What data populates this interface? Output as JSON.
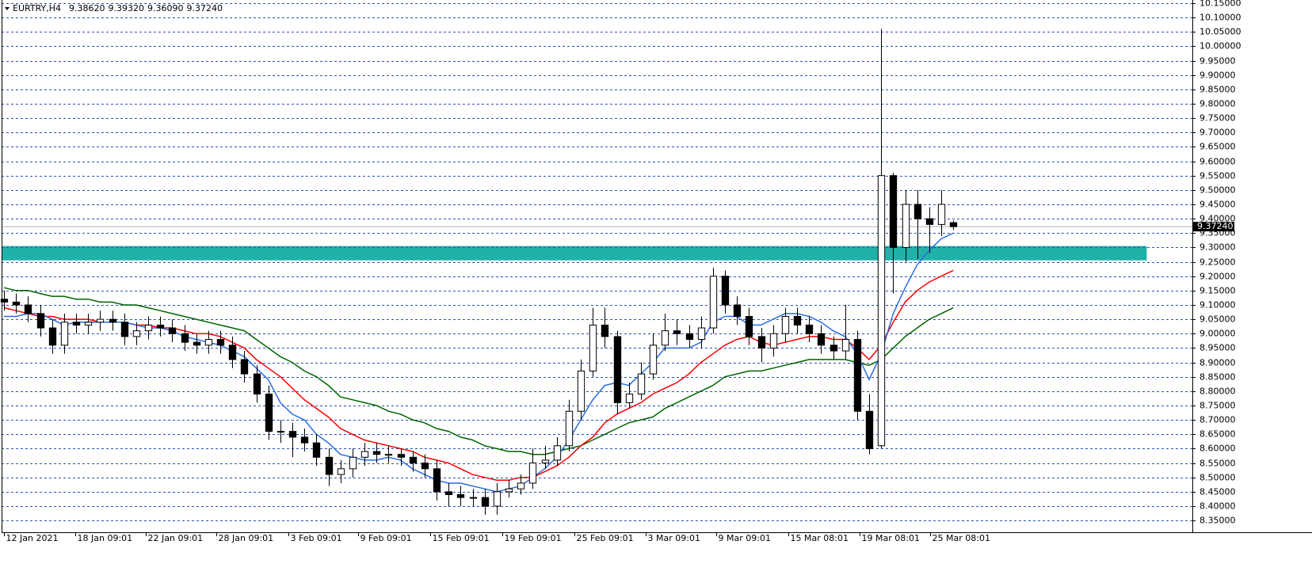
{
  "chart_data": {
    "type": "candlestick",
    "title": "EURTRY,H4",
    "last_bar_labels": [
      "9.38620",
      "9.39320",
      "9.36090",
      "9.37240"
    ],
    "xlim": [
      -0.2,
      98.9
    ],
    "ylim": [
      8.309,
      10.161
    ],
    "grid": true,
    "up_color": "#ffffff",
    "down_color": "#000000",
    "grid_color": "#2e4fb8",
    "xticks": [
      {
        "value": 0,
        "label": "12 Jan 2021"
      },
      {
        "value": 5.9,
        "label": "18 Jan 09:01"
      },
      {
        "value": 11.8,
        "label": "22 Jan 09:01"
      },
      {
        "value": 17.7,
        "label": "28 Jan 09:01"
      },
      {
        "value": 23.7,
        "label": "3 Feb 09:01"
      },
      {
        "value": 29.5,
        "label": "9 Feb 09:01"
      },
      {
        "value": 35.5,
        "label": "15 Feb 09:01"
      },
      {
        "value": 41.5,
        "label": "19 Feb 09:01"
      },
      {
        "value": 47.5,
        "label": "25 Feb 09:01"
      },
      {
        "value": 53.4,
        "label": "3 Mar 09:01"
      },
      {
        "value": 59.3,
        "label": "9 Mar 09:01"
      },
      {
        "value": 65.3,
        "label": "15 Mar 08:01"
      },
      {
        "value": 71.2,
        "label": "19 Mar 08:01"
      },
      {
        "value": 77.1,
        "label": "25 Mar 08:01"
      }
    ],
    "yticks": [
      {
        "value": 8.35,
        "label": "8.35000"
      },
      {
        "value": 8.4,
        "label": "8.40000"
      },
      {
        "value": 8.45,
        "label": "8.45000"
      },
      {
        "value": 8.5,
        "label": "8.50000"
      },
      {
        "value": 8.55,
        "label": "8.55000"
      },
      {
        "value": 8.6,
        "label": "8.60000"
      },
      {
        "value": 8.65,
        "label": "8.65000"
      },
      {
        "value": 8.7,
        "label": "8.70000"
      },
      {
        "value": 8.75,
        "label": "8.75000"
      },
      {
        "value": 8.8,
        "label": "8.80000"
      },
      {
        "value": 8.85,
        "label": "8.85000"
      },
      {
        "value": 8.9,
        "label": "8.90000"
      },
      {
        "value": 8.95,
        "label": "8.95000"
      },
      {
        "value": 9.0,
        "label": "9.00000"
      },
      {
        "value": 9.05,
        "label": "9.05000"
      },
      {
        "value": 9.1,
        "label": "9.10000"
      },
      {
        "value": 9.15,
        "label": "9.15000"
      },
      {
        "value": 9.2,
        "label": "9.20000"
      },
      {
        "value": 9.25,
        "label": "9.25000"
      },
      {
        "value": 9.3,
        "label": "9.30000"
      },
      {
        "value": 9.35,
        "label": "9.35000"
      },
      {
        "value": 9.4,
        "label": "9.40000"
      },
      {
        "value": 9.45,
        "label": "9.45000"
      },
      {
        "value": 9.5,
        "label": "9.50000"
      },
      {
        "value": 9.55,
        "label": "9.55000"
      },
      {
        "value": 9.6,
        "label": "9.60000"
      },
      {
        "value": 9.65,
        "label": "9.65000"
      },
      {
        "value": 9.7,
        "label": "9.70000"
      },
      {
        "value": 9.75,
        "label": "9.75000"
      },
      {
        "value": 9.8,
        "label": "9.80000"
      },
      {
        "value": 9.85,
        "label": "9.85000"
      },
      {
        "value": 9.9,
        "label": "9.90000"
      },
      {
        "value": 9.95,
        "label": "9.95000"
      },
      {
        "value": 10.0,
        "label": "10.00000"
      },
      {
        "value": 10.05,
        "label": "10.05000"
      },
      {
        "value": 10.1,
        "label": "10.10000"
      },
      {
        "value": 10.15,
        "label": "10.15000"
      }
    ],
    "zone": {
      "low": 9.255,
      "high": 9.305,
      "x_end": 95.1,
      "color": "#20b2aa"
    },
    "last_price": 9.3724,
    "x": [
      0,
      1,
      2,
      3,
      4,
      5,
      6,
      7,
      8,
      9,
      10,
      11,
      12,
      13,
      14,
      15,
      16,
      17,
      18,
      19,
      20,
      21,
      22,
      23,
      24,
      25,
      26,
      27,
      28,
      29,
      30,
      31,
      32,
      33,
      34,
      35,
      36,
      37,
      38,
      39,
      40,
      41,
      42,
      43,
      44,
      45,
      46,
      47,
      48,
      49,
      50,
      51,
      52,
      53,
      54,
      55,
      56,
      57,
      58,
      59,
      60,
      61,
      62,
      63,
      64,
      65,
      66,
      67,
      68,
      69,
      70,
      71,
      72,
      73,
      74,
      75,
      76,
      77,
      78,
      79
    ],
    "open": [
      9.12,
      9.11,
      9.1,
      9.07,
      9.02,
      8.96,
      9.04,
      9.03,
      9.04,
      9.05,
      9.04,
      8.99,
      9.01,
      9.03,
      9.02,
      9.0,
      8.97,
      8.96,
      8.98,
      8.96,
      8.91,
      8.86,
      8.79,
      8.66,
      8.66,
      8.64,
      8.62,
      8.57,
      8.51,
      8.53,
      8.57,
      8.59,
      8.58,
      8.58,
      8.57,
      8.55,
      8.53,
      8.45,
      8.44,
      8.43,
      8.43,
      8.4,
      8.45,
      8.46,
      8.48,
      8.55,
      8.56,
      8.61,
      8.73,
      8.87,
      9.03,
      8.99,
      8.76,
      8.79,
      8.86,
      8.96,
      9.01,
      9.0,
      8.98,
      9.02,
      9.2,
      9.1,
      9.06,
      8.99,
      8.95,
      9.0,
      9.06,
      9.03,
      9.0,
      8.96,
      8.94,
      8.98,
      8.73,
      8.61,
      9.55,
      9.3,
      9.45,
      9.4,
      9.38,
      9.3862
    ],
    "high": [
      9.15,
      9.14,
      9.13,
      9.1,
      9.05,
      9.07,
      9.07,
      9.07,
      9.08,
      9.08,
      9.07,
      9.04,
      9.06,
      9.06,
      9.05,
      9.03,
      9.0,
      9.01,
      9.01,
      8.99,
      8.94,
      8.89,
      8.82,
      8.7,
      8.69,
      8.67,
      8.65,
      8.6,
      8.56,
      8.6,
      8.62,
      8.62,
      8.61,
      8.6,
      8.59,
      8.58,
      8.56,
      8.48,
      8.47,
      8.46,
      8.46,
      8.48,
      8.49,
      8.51,
      8.6,
      8.61,
      8.64,
      8.77,
      8.91,
      9.09,
      9.09,
      9.01,
      8.83,
      8.9,
      9.0,
      9.07,
      9.05,
      9.03,
      9.06,
      9.23,
      9.22,
      9.13,
      9.09,
      9.02,
      9.03,
      9.09,
      9.09,
      9.06,
      9.03,
      8.99,
      9.1,
      9.01,
      8.79,
      10.06,
      9.56,
      9.5,
      9.5,
      9.44,
      9.5,
      9.3932
    ],
    "low": [
      9.08,
      9.07,
      9.04,
      8.99,
      8.93,
      8.93,
      9.0,
      9.0,
      9.01,
      9.01,
      8.96,
      8.96,
      8.98,
      8.99,
      8.97,
      8.94,
      8.93,
      8.93,
      8.93,
      8.88,
      8.83,
      8.76,
      8.63,
      8.62,
      8.57,
      8.59,
      8.54,
      8.47,
      8.48,
      8.5,
      8.54,
      8.55,
      8.55,
      8.54,
      8.52,
      8.5,
      8.42,
      8.4,
      8.4,
      8.4,
      8.37,
      8.37,
      8.43,
      8.44,
      8.46,
      8.53,
      8.54,
      8.59,
      8.7,
      8.85,
      8.95,
      8.72,
      8.74,
      8.77,
      8.84,
      8.94,
      8.96,
      8.95,
      8.95,
      9.0,
      9.07,
      9.03,
      8.96,
      8.9,
      8.92,
      8.97,
      9.0,
      8.97,
      8.93,
      8.91,
      8.91,
      8.7,
      8.58,
      8.6,
      9.14,
      9.25,
      9.26,
      9.28,
      9.34,
      9.3609
    ],
    "close": [
      9.11,
      9.1,
      9.07,
      9.02,
      8.96,
      9.04,
      9.03,
      9.04,
      9.05,
      9.04,
      8.99,
      9.01,
      9.03,
      9.02,
      9.0,
      8.97,
      8.96,
      8.98,
      8.96,
      8.91,
      8.86,
      8.79,
      8.66,
      8.66,
      8.64,
      8.62,
      8.57,
      8.51,
      8.53,
      8.57,
      8.59,
      8.58,
      8.58,
      8.57,
      8.55,
      8.53,
      8.45,
      8.44,
      8.43,
      8.43,
      8.4,
      8.45,
      8.46,
      8.48,
      8.55,
      8.56,
      8.61,
      8.73,
      8.87,
      9.03,
      8.99,
      8.76,
      8.79,
      8.86,
      8.96,
      9.01,
      9.0,
      8.98,
      9.02,
      9.2,
      9.1,
      9.06,
      8.99,
      8.95,
      9.0,
      9.06,
      9.03,
      9.0,
      8.96,
      8.94,
      8.98,
      8.73,
      8.6,
      9.55,
      9.3,
      9.45,
      9.4,
      9.38,
      9.45,
      9.3724
    ],
    "overlays": [
      {
        "color": "#006400",
        "values": [
          9.16,
          9.15,
          9.15,
          9.14,
          9.13,
          9.13,
          9.12,
          9.12,
          9.11,
          9.11,
          9.1,
          9.1,
          9.09,
          9.08,
          9.07,
          9.06,
          9.05,
          9.04,
          9.03,
          9.02,
          9.01,
          8.98,
          8.95,
          8.92,
          8.9,
          8.87,
          8.85,
          8.82,
          8.78,
          8.77,
          8.76,
          8.75,
          8.73,
          8.72,
          8.7,
          8.69,
          8.67,
          8.66,
          8.64,
          8.63,
          8.61,
          8.6,
          8.59,
          8.59,
          8.58,
          8.58,
          8.59,
          8.6,
          8.61,
          8.63,
          8.65,
          8.67,
          8.69,
          8.7,
          8.71,
          8.74,
          8.76,
          8.78,
          8.8,
          8.82,
          8.85,
          8.86,
          8.87,
          8.87,
          8.88,
          8.89,
          8.9,
          8.91,
          8.91,
          8.91,
          8.91,
          8.9,
          8.89,
          8.91,
          8.95,
          8.99,
          9.02,
          9.05,
          9.07,
          9.09
        ]
      },
      {
        "color": "#ff0000",
        "values": [
          9.09,
          9.08,
          9.07,
          9.06,
          9.06,
          9.05,
          9.05,
          9.05,
          9.04,
          9.04,
          9.04,
          9.03,
          9.03,
          9.02,
          9.02,
          9.01,
          9.0,
          9.0,
          8.99,
          8.97,
          8.95,
          8.91,
          8.88,
          8.85,
          8.81,
          8.77,
          8.74,
          8.71,
          8.67,
          8.65,
          8.63,
          8.62,
          8.61,
          8.6,
          8.59,
          8.57,
          8.56,
          8.55,
          8.53,
          8.51,
          8.5,
          8.49,
          8.49,
          8.5,
          8.5,
          8.52,
          8.54,
          8.57,
          8.61,
          8.64,
          8.69,
          8.72,
          8.74,
          8.76,
          8.79,
          8.81,
          8.83,
          8.86,
          8.9,
          8.93,
          8.96,
          8.98,
          8.99,
          8.97,
          8.96,
          8.97,
          8.98,
          8.99,
          8.99,
          8.98,
          8.98,
          8.95,
          8.91,
          8.96,
          9.04,
          9.11,
          9.15,
          9.18,
          9.2,
          9.22
        ]
      },
      {
        "color": "#2a6ee0",
        "values": [
          9.06,
          9.06,
          9.07,
          9.07,
          9.05,
          9.03,
          9.04,
          9.04,
          9.04,
          9.04,
          9.04,
          9.03,
          9.02,
          9.02,
          9.01,
          8.99,
          8.98,
          8.97,
          8.96,
          8.94,
          8.92,
          8.88,
          8.84,
          8.76,
          8.72,
          8.7,
          8.65,
          8.62,
          8.58,
          8.57,
          8.56,
          8.56,
          8.57,
          8.56,
          8.53,
          8.51,
          8.49,
          8.48,
          8.48,
          8.47,
          8.46,
          8.45,
          8.46,
          8.47,
          8.5,
          8.53,
          8.57,
          8.63,
          8.7,
          8.77,
          8.82,
          8.83,
          8.82,
          8.86,
          8.9,
          8.95,
          8.95,
          8.95,
          8.97,
          9.04,
          9.06,
          9.06,
          9.03,
          9.03,
          9.05,
          9.07,
          9.07,
          9.06,
          9.04,
          9.01,
          8.99,
          8.93,
          8.84,
          8.93,
          9.07,
          9.16,
          9.24,
          9.29,
          9.33,
          9.35
        ]
      }
    ]
  }
}
